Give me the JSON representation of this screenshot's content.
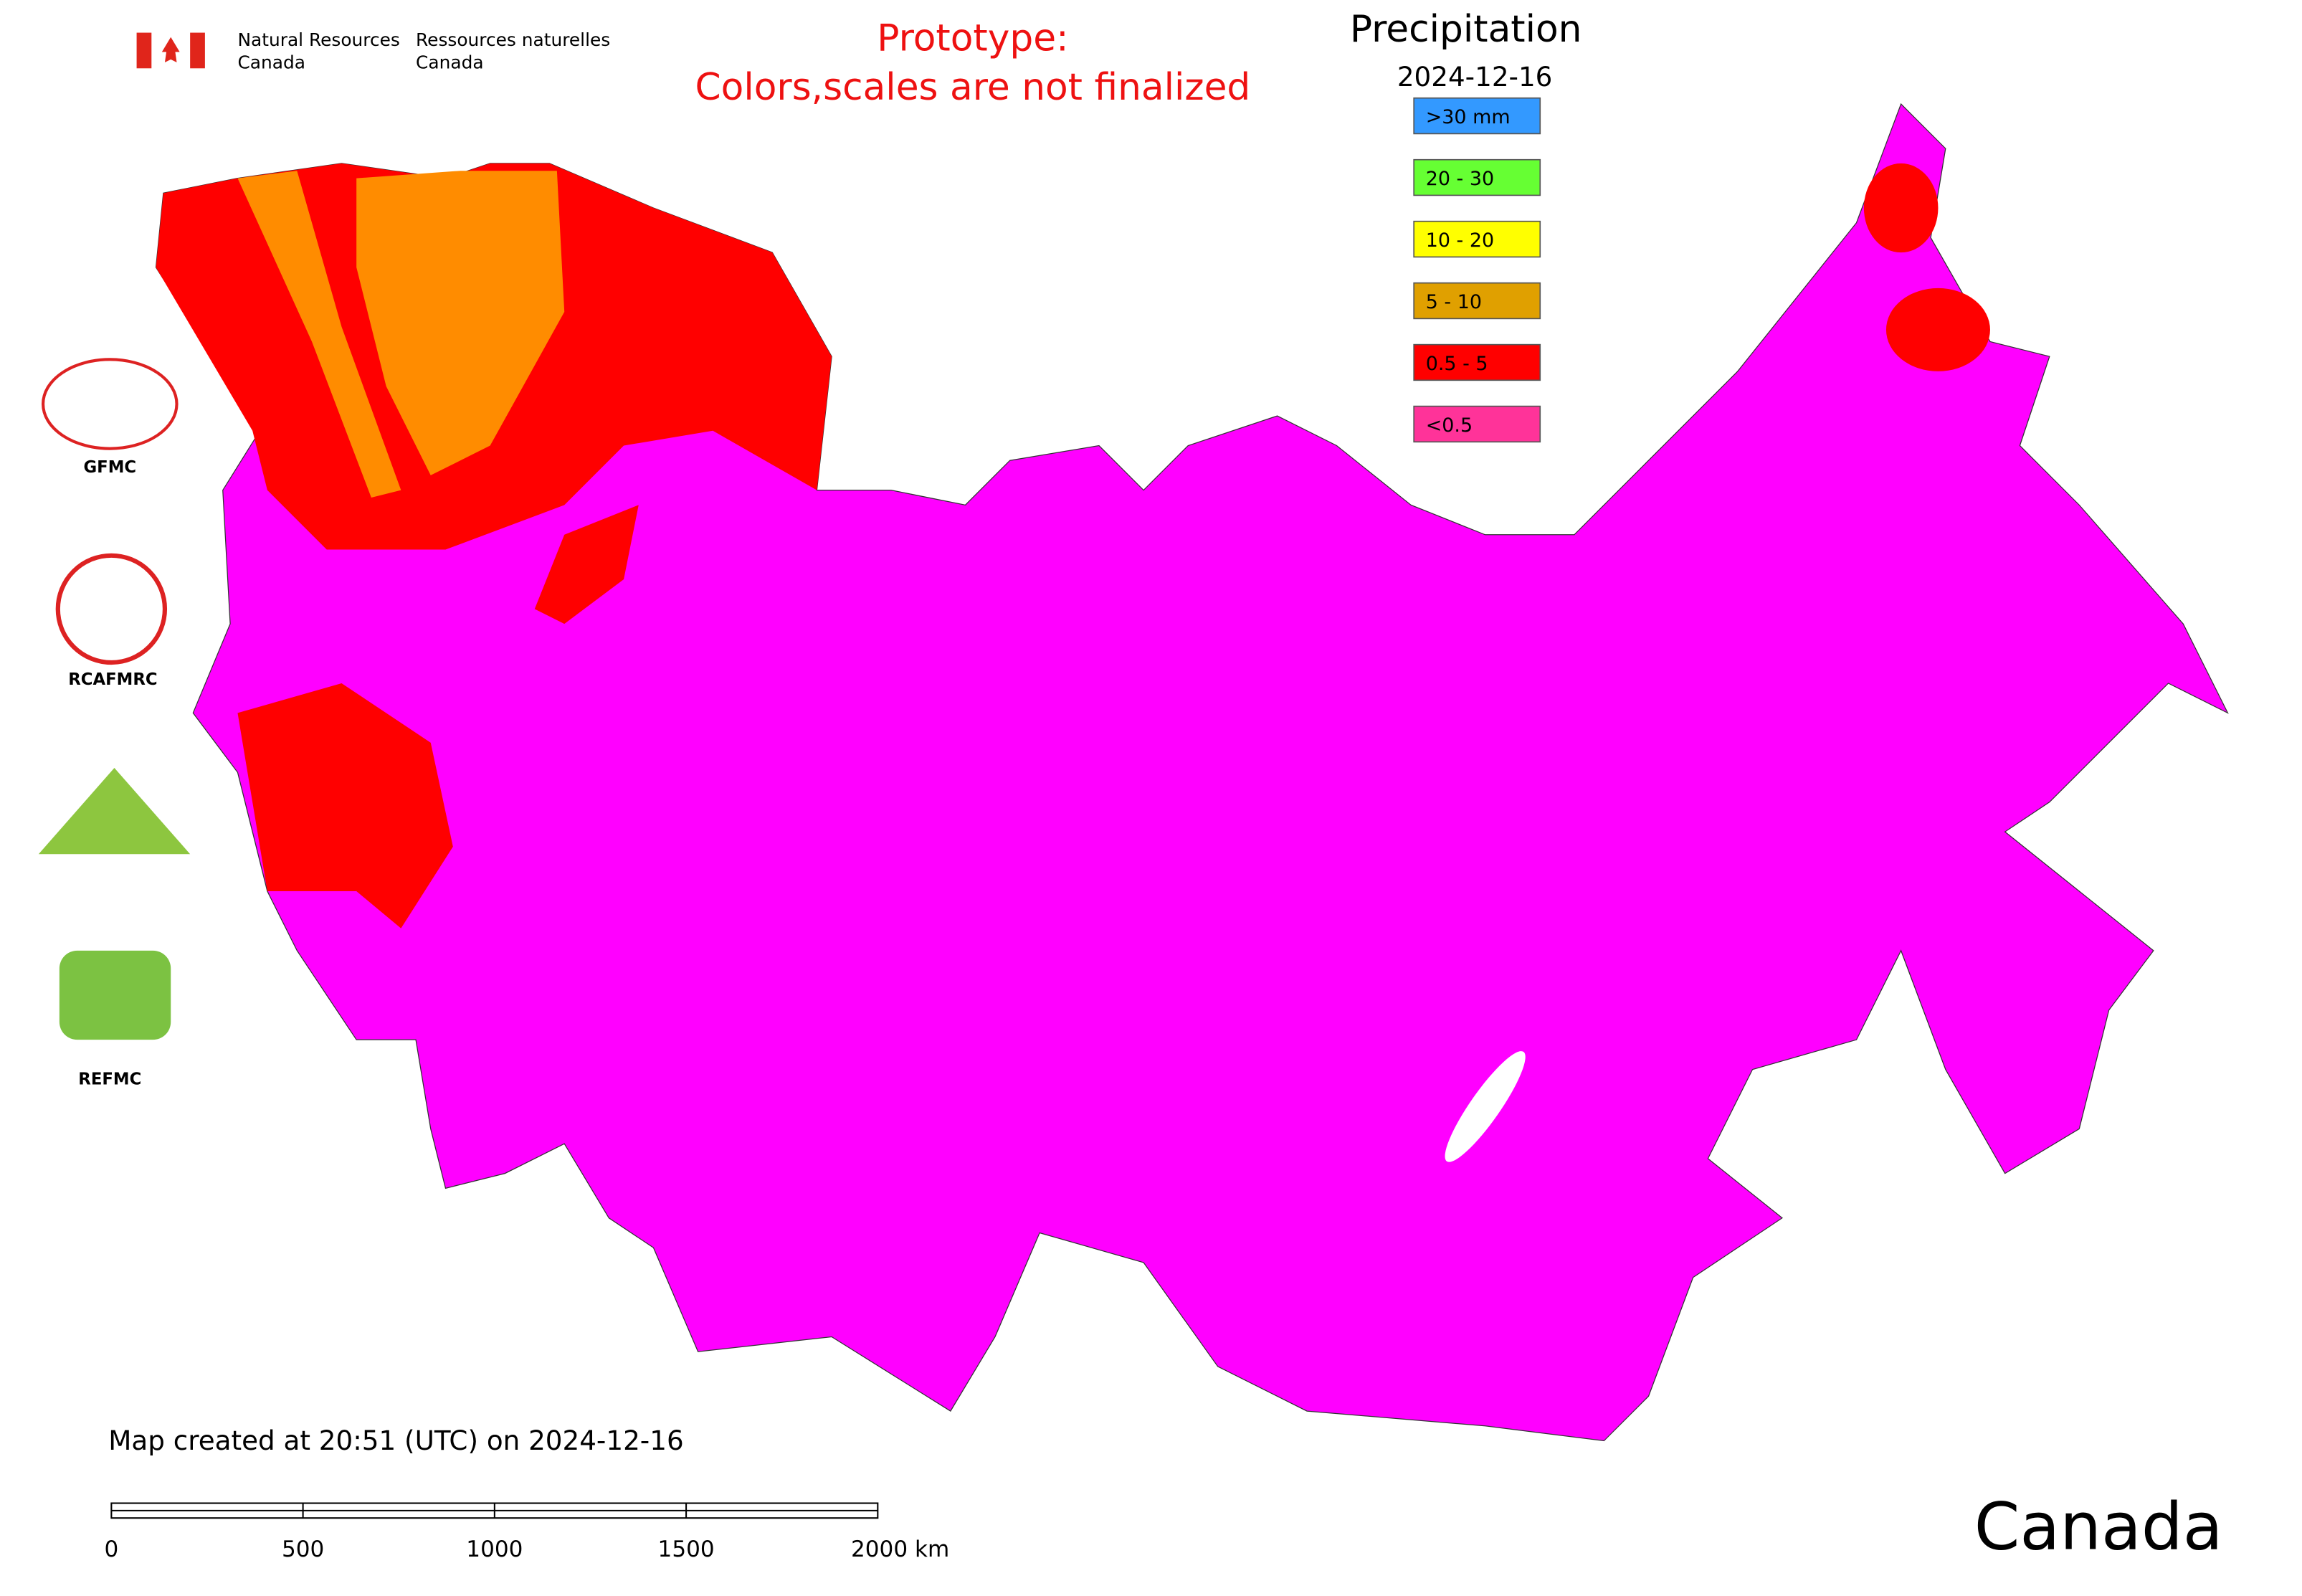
{
  "header": {
    "nrcan_en": [
      "Natural Resources",
      "Canada"
    ],
    "nrcan_fr": [
      "Ressources naturelles",
      "Canada"
    ],
    "notice": [
      "Prototype:",
      "Colors,scales are not finalized"
    ]
  },
  "legend": {
    "title": "Precipitation",
    "date": "2024-12-16",
    "items": [
      {
        "label": ">30 mm",
        "color": "#3399ff"
      },
      {
        "label": "20 - 30",
        "color": "#66ff33"
      },
      {
        "label": "10 - 20",
        "color": "#ffff00"
      },
      {
        "label": "5 - 10",
        "color": "#e0a000"
      },
      {
        "label": "0.5 - 5",
        "color": "#ff0000"
      },
      {
        "label": "<0.5",
        "color": "#ff3399"
      }
    ]
  },
  "logos": [
    "GFMC",
    "RCAFMRC",
    "REFMC"
  ],
  "footer": {
    "created": "Map created at 20:51 (UTC) on 2024-12-16",
    "scale_labels": [
      "0",
      "500",
      "1000",
      "1500",
      "2000 km"
    ],
    "wordmark": "Canada"
  }
}
